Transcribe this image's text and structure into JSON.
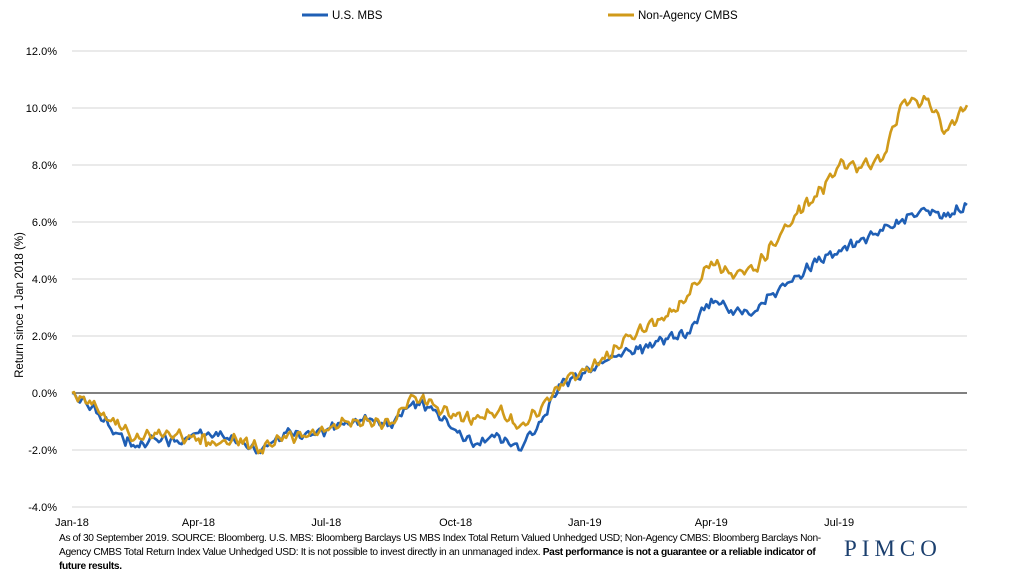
{
  "chart_data": {
    "type": "line",
    "ylabel": "Return since 1 Jan 2018 (%)",
    "ylim": [
      -4,
      12
    ],
    "yticks": [
      "-4.0%",
      "-2.0%",
      "0.0%",
      "2.0%",
      "4.0%",
      "6.0%",
      "8.0%",
      "10.0%",
      "12.0%"
    ],
    "xticks": [
      "Jan-18",
      "Apr-18",
      "Jul-18",
      "Oct-18",
      "Jan-19",
      "Apr-19",
      "Jul-19"
    ],
    "xlim": [
      "2018-01-01",
      "2019-09-30"
    ],
    "grid": true,
    "legend_position": "top",
    "x": [
      "2018-01-01",
      "2018-01-15",
      "2018-02-01",
      "2018-02-15",
      "2018-03-01",
      "2018-03-15",
      "2018-04-01",
      "2018-04-15",
      "2018-05-01",
      "2018-05-15",
      "2018-06-01",
      "2018-06-15",
      "2018-07-01",
      "2018-07-15",
      "2018-08-01",
      "2018-08-15",
      "2018-09-01",
      "2018-09-15",
      "2018-10-01",
      "2018-10-15",
      "2018-11-01",
      "2018-11-15",
      "2018-12-01",
      "2018-12-15",
      "2019-01-01",
      "2019-01-15",
      "2019-02-01",
      "2019-02-15",
      "2019-03-01",
      "2019-03-15",
      "2019-04-01",
      "2019-04-15",
      "2019-05-01",
      "2019-05-15",
      "2019-06-01",
      "2019-06-15",
      "2019-07-01",
      "2019-07-15",
      "2019-08-01",
      "2019-08-15",
      "2019-09-01",
      "2019-09-15",
      "2019-09-30"
    ],
    "series": [
      {
        "name": "U.S. MBS",
        "color": "#1f5fb5",
        "values": [
          0.0,
          -0.5,
          -1.4,
          -1.9,
          -1.6,
          -1.7,
          -1.4,
          -1.5,
          -1.7,
          -2.1,
          -1.4,
          -1.5,
          -1.3,
          -1.0,
          -0.9,
          -1.1,
          -0.3,
          -0.6,
          -1.3,
          -1.8,
          -1.5,
          -2.0,
          -1.0,
          0.3,
          0.7,
          1.1,
          1.5,
          1.6,
          1.9,
          2.1,
          3.3,
          2.9,
          2.8,
          3.5,
          4.1,
          4.6,
          5.0,
          5.3,
          5.7,
          6.1,
          6.4,
          6.2,
          6.6
        ]
      },
      {
        "name": "Non-Agency CMBS",
        "color": "#d09a1a",
        "values": [
          0.0,
          -0.4,
          -1.1,
          -1.6,
          -1.4,
          -1.5,
          -1.6,
          -1.8,
          -1.6,
          -2.0,
          -1.5,
          -1.5,
          -1.3,
          -1.0,
          -1.0,
          -1.1,
          -0.1,
          -0.4,
          -0.8,
          -0.9,
          -0.6,
          -1.2,
          -0.5,
          0.3,
          0.8,
          1.2,
          2.0,
          2.4,
          2.7,
          3.4,
          4.6,
          4.2,
          4.3,
          5.2,
          6.3,
          6.9,
          8.0,
          7.9,
          8.2,
          10.2,
          10.3,
          9.2,
          10.1
        ]
      }
    ]
  },
  "footnote": {
    "text": "As of 30 September 2019. SOURCE: Bloomberg. U.S. MBS: Bloomberg Barclays US MBS Index Total Return Valued Unhedged USD; Non-Agency CMBS: Bloomberg Barclays Non-Agency CMBS Total Return Index Value Unhedged USD: It is not possible to invest directly in an unmanaged index. ",
    "bold": "Past performance is not a guarantee or a reliable indicator of future results."
  },
  "logo": "PIMCO"
}
